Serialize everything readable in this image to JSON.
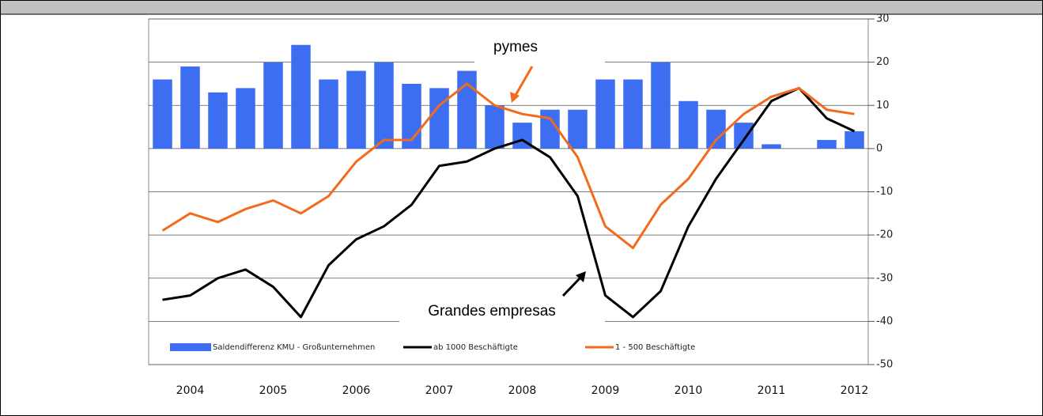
{
  "chart_data": {
    "type": "bar_line",
    "categories": [
      null,
      "2004",
      null,
      null,
      "2005",
      null,
      null,
      "2006",
      null,
      null,
      "2007",
      null,
      null,
      "2008",
      null,
      null,
      "2009",
      null,
      null,
      "2010",
      null,
      null,
      "2011",
      null,
      null,
      "2012"
    ],
    "series": [
      {
        "name": "Saldendifferenz KMU - Großunternehmen",
        "type": "bar",
        "color": "#3d6ef2",
        "values": [
          16,
          19,
          13,
          14,
          20,
          24,
          16,
          18,
          20,
          15,
          14,
          18,
          10,
          6,
          9,
          9,
          16,
          16,
          20,
          11,
          9,
          6,
          1,
          null,
          2,
          4
        ]
      },
      {
        "name": "ab 1000 Beschäftigte",
        "type": "line",
        "color": "#000000",
        "values": [
          -35,
          -34,
          -30,
          -28,
          -32,
          -39,
          -27,
          -21,
          -18,
          -13,
          -4,
          -3,
          0,
          2,
          -2,
          -11,
          -34,
          -39,
          -33,
          -18,
          -7,
          2,
          11,
          14,
          7,
          4
        ]
      },
      {
        "name": "1 - 500 Beschäftigte",
        "type": "line",
        "color": "#f26b1d",
        "values": [
          -19,
          -15,
          -17,
          -14,
          -12,
          -15,
          -11,
          -3,
          2,
          2,
          10,
          15,
          10,
          8,
          7,
          -2,
          -18,
          -23,
          -13,
          -7,
          2,
          8,
          12,
          14,
          9,
          8
        ]
      }
    ],
    "ylim": [
      -50,
      30
    ],
    "yticks": [
      30,
      20,
      10,
      0,
      -10,
      -20,
      -30,
      -40,
      -50
    ],
    "grid": true,
    "annotations": [
      "pymes",
      "Grandes empresas"
    ]
  }
}
